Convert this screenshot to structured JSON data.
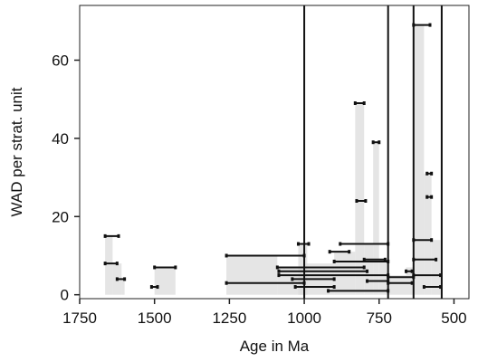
{
  "chart_data": {
    "type": "scatter",
    "title": "",
    "xlabel": "Age in Ma",
    "ylabel": "WAD per strat. unit",
    "xlim": [
      1750,
      450
    ],
    "ylim": [
      -1,
      74
    ],
    "x_reversed": true,
    "x_ticks": [
      1750,
      1500,
      1250,
      1000,
      750,
      500
    ],
    "y_ticks": [
      0,
      20,
      40,
      60
    ],
    "x_tick_labels": [
      "1750",
      "1500",
      "1250",
      "1000",
      "750",
      "500"
    ],
    "y_tick_labels": [
      "0",
      "20",
      "40",
      "60"
    ],
    "grid": false,
    "legend": "none",
    "vertical_lines": [
      1000,
      720,
      635,
      541
    ],
    "colors": {
      "interval": "#111111",
      "shade": "#dcdcdc",
      "line": "#111111"
    },
    "intervals": [
      {
        "x_start": 1665,
        "x_end": 1620,
        "y": 15
      },
      {
        "x_start": 1665,
        "x_end": 1625,
        "y": 8
      },
      {
        "x_start": 1625,
        "x_end": 1600,
        "y": 4
      },
      {
        "x_start": 1500,
        "x_end": 1430,
        "y": 7
      },
      {
        "x_start": 1510,
        "x_end": 1490,
        "y": 2
      },
      {
        "x_start": 1260,
        "x_end": 1000,
        "y": 10
      },
      {
        "x_start": 1260,
        "x_end": 1000,
        "y": 3
      },
      {
        "x_start": 1090,
        "x_end": 800,
        "y": 7
      },
      {
        "x_start": 1085,
        "x_end": 790,
        "y": 6
      },
      {
        "x_start": 1085,
        "x_end": 720,
        "y": 5
      },
      {
        "x_start": 1040,
        "x_end": 900,
        "y": 4
      },
      {
        "x_start": 1030,
        "x_end": 900,
        "y": 2
      },
      {
        "x_start": 1020,
        "x_end": 985,
        "y": 13
      },
      {
        "x_start": 915,
        "x_end": 850,
        "y": 11
      },
      {
        "x_start": 900,
        "x_end": 720,
        "y": 8.5
      },
      {
        "x_start": 920,
        "x_end": 720,
        "y": 1
      },
      {
        "x_start": 880,
        "x_end": 720,
        "y": 13
      },
      {
        "x_start": 830,
        "x_end": 800,
        "y": 49
      },
      {
        "x_start": 825,
        "x_end": 795,
        "y": 24
      },
      {
        "x_start": 770,
        "x_end": 750,
        "y": 39
      },
      {
        "x_start": 800,
        "x_end": 730,
        "y": 9
      },
      {
        "x_start": 790,
        "x_end": 720,
        "y": 3.5
      },
      {
        "x_start": 720,
        "x_end": 635,
        "y": 4.5
      },
      {
        "x_start": 720,
        "x_end": 640,
        "y": 3
      },
      {
        "x_start": 660,
        "x_end": 640,
        "y": 6
      },
      {
        "x_start": 635,
        "x_end": 580,
        "y": 69
      },
      {
        "x_start": 590,
        "x_end": 575,
        "y": 31
      },
      {
        "x_start": 590,
        "x_end": 575,
        "y": 25
      },
      {
        "x_start": 635,
        "x_end": 575,
        "y": 14
      },
      {
        "x_start": 635,
        "x_end": 560,
        "y": 9
      },
      {
        "x_start": 635,
        "x_end": 545,
        "y": 5
      },
      {
        "x_start": 600,
        "x_end": 545,
        "y": 2
      }
    ],
    "shades": [
      {
        "x_start": 1665,
        "x_end": 1640,
        "y": 15
      },
      {
        "x_start": 1640,
        "x_end": 1610,
        "y": 8
      },
      {
        "x_start": 1610,
        "x_end": 1600,
        "y": 4
      },
      {
        "x_start": 1500,
        "x_end": 1430,
        "y": 7
      },
      {
        "x_start": 1260,
        "x_end": 1090,
        "y": 10
      },
      {
        "x_start": 1090,
        "x_end": 1000,
        "y": 7
      },
      {
        "x_start": 1020,
        "x_end": 990,
        "y": 13
      },
      {
        "x_start": 1000,
        "x_end": 900,
        "y": 8
      },
      {
        "x_start": 900,
        "x_end": 830,
        "y": 11
      },
      {
        "x_start": 830,
        "x_end": 800,
        "y": 49
      },
      {
        "x_start": 800,
        "x_end": 770,
        "y": 13
      },
      {
        "x_start": 770,
        "x_end": 750,
        "y": 39
      },
      {
        "x_start": 750,
        "x_end": 720,
        "y": 9
      },
      {
        "x_start": 720,
        "x_end": 660,
        "y": 5
      },
      {
        "x_start": 660,
        "x_end": 635,
        "y": 7
      },
      {
        "x_start": 635,
        "x_end": 600,
        "y": 69
      },
      {
        "x_start": 600,
        "x_end": 575,
        "y": 31
      },
      {
        "x_start": 575,
        "x_end": 545,
        "y": 14
      }
    ]
  }
}
